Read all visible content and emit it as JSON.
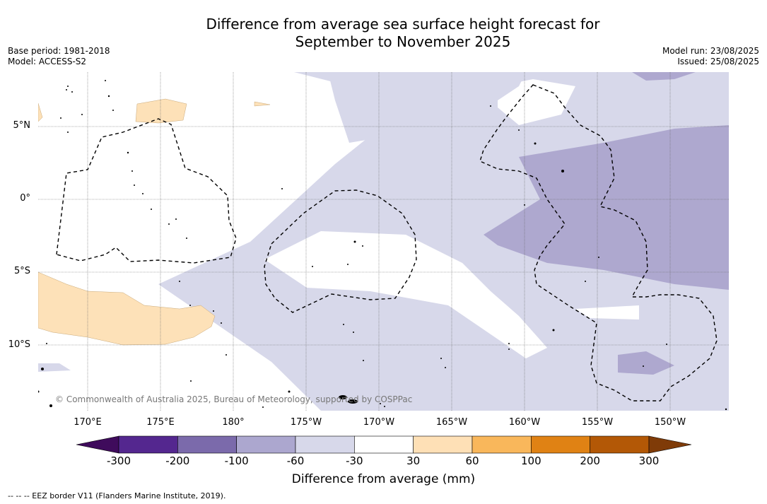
{
  "title": {
    "line1": "Difference from average sea surface height forecast for",
    "line2": "September to November 2025"
  },
  "meta": {
    "base_period": "Base period: 1981-2018",
    "model": "Model: ACCESS-S2",
    "model_run": "Model run: 23/08/2025",
    "issued": "Issued: 25/08/2025"
  },
  "latitude_labels": [
    "5°N",
    "0°",
    "5°S",
    "10°S"
  ],
  "longitude_labels": [
    "170°E",
    "175°E",
    "180°",
    "175°W",
    "170°W",
    "165°W",
    "160°W",
    "155°W",
    "150°W"
  ],
  "copyright": "© Commonwealth of Australia 2025, Bureau of Meteorology, supported by COSPPac",
  "colorbar": {
    "ticks": [
      "-300",
      "-200",
      "-100",
      "-60",
      "-30",
      "30",
      "60",
      "100",
      "200",
      "300"
    ],
    "colors": [
      "#3f0b5c",
      "#54278f",
      "#7b6aab",
      "#aca7cf",
      "#d7d8ea",
      "#ffffff",
      "#fee0b6",
      "#f9b75b",
      "#e08214",
      "#b35806",
      "#7f3b08"
    ],
    "label": "Difference from average (mm)"
  },
  "map_colors": {
    "light_negative": "#d7d8ea",
    "medium_negative": "#aea8cf",
    "light_positive": "#fde1b8"
  },
  "legend": "--  --  -- EEZ border V11 (Flanders Marine Institute, 2019)."
}
